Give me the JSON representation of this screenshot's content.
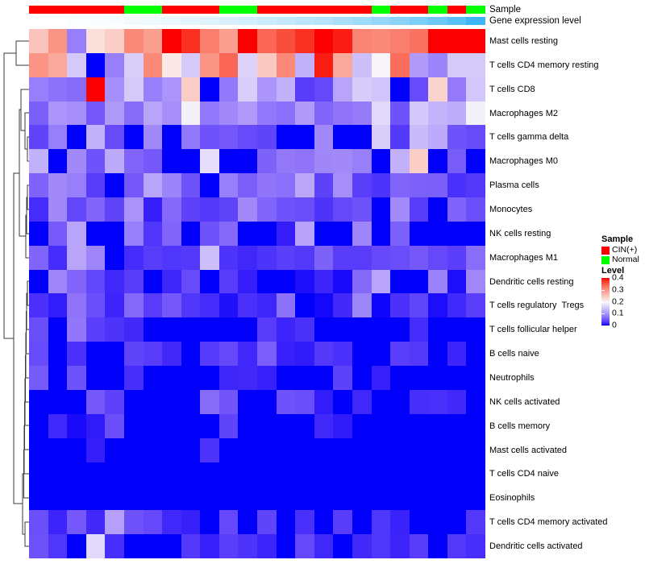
{
  "annotations": {
    "sample_label": "Sample",
    "expr_label": "Gene expression level"
  },
  "legend": {
    "sample": {
      "title": "Sample",
      "items": [
        {
          "label": "CIN(+)",
          "color": "#FF0000"
        },
        {
          "label": "Normal",
          "color": "#00FF00"
        }
      ]
    },
    "level": {
      "title": "Level",
      "ticks": [
        "0.4",
        "0.3",
        "0.2",
        "0.1",
        "0"
      ]
    }
  },
  "colors": {
    "sample": {
      "CIN(+)": "#FF0000",
      "Normal": "#00FF00"
    },
    "expr_low": "#FFFFFF",
    "expr_high": "#3CB6F5",
    "level_low": "#0000FA",
    "level_mid": "#FAF0F0",
    "level_high": "#FA0A05",
    "dendrogram_line": "#3A3A3A"
  },
  "chart_data": {
    "type": "heatmap",
    "title": "",
    "value_range": [
      0,
      0.4
    ],
    "colormap": "blue-white-red",
    "legend_position": "right",
    "n_columns": 24,
    "column_labels_visible": false,
    "rows": [
      "Mast cells resting",
      "T cells CD4 memory resting",
      "T cells CD8",
      "Macrophages M2",
      "T cells gamma delta",
      "Macrophages M0",
      "Plasma cells",
      "Monocytes",
      "NK cells resting",
      "Macrophages M1",
      "Dendritic cells resting",
      "T cells regulatory  Tregs",
      "T cells follicular helper",
      "B cells naive",
      "Neutrophils",
      "NK cells activated",
      "B cells memory",
      "Mast cells activated",
      "T cells CD4 naive",
      "Eosinophils",
      "T cells CD4 memory activated",
      "Dendritic cells activated"
    ],
    "column_annotations": {
      "sample": [
        "CIN(+)",
        "CIN(+)",
        "CIN(+)",
        "CIN(+)",
        "CIN(+)",
        "Normal",
        "Normal",
        "CIN(+)",
        "CIN(+)",
        "CIN(+)",
        "Normal",
        "Normal",
        "CIN(+)",
        "CIN(+)",
        "CIN(+)",
        "CIN(+)",
        "CIN(+)",
        "CIN(+)",
        "Normal",
        "CIN(+)",
        "CIN(+)",
        "Normal",
        "CIN(+)",
        "Normal"
      ],
      "gene_expression_level_relative": [
        0.0,
        0.02,
        0.05,
        0.07,
        0.09,
        0.12,
        0.15,
        0.18,
        0.21,
        0.25,
        0.28,
        0.32,
        0.36,
        0.4,
        0.44,
        0.48,
        0.53,
        0.58,
        0.63,
        0.68,
        0.74,
        0.8,
        0.88,
        1.0
      ]
    },
    "values": [
      [
        0.25,
        0.3,
        0.08,
        0.22,
        0.24,
        0.31,
        0.29,
        0.4,
        0.38,
        0.32,
        0.29,
        0.4,
        0.34,
        0.36,
        0.38,
        0.4,
        0.39,
        0.315,
        0.31,
        0.32,
        0.33,
        0.4,
        0.4,
        0.4
      ],
      [
        0.3,
        0.28,
        0.15,
        0.0,
        0.08,
        0.155,
        0.31,
        0.21,
        0.15,
        0.3,
        0.34,
        0.16,
        0.245,
        0.31,
        0.125,
        0.39,
        0.28,
        0.14,
        0.195,
        0.335,
        0.105,
        0.085,
        0.15,
        0.15
      ],
      [
        0.08,
        0.07,
        0.065,
        0.4,
        0.095,
        0.15,
        0.08,
        0.1,
        0.24,
        0.0,
        0.075,
        0.155,
        0.1,
        0.125,
        0.03,
        0.038,
        0.115,
        0.152,
        0.145,
        0.0,
        0.04,
        0.235,
        0.077,
        0.147
      ],
      [
        0.055,
        0.1,
        0.095,
        0.05,
        0.105,
        0.065,
        0.115,
        0.095,
        0.19,
        0.075,
        0.09,
        0.105,
        0.075,
        0.068,
        0.105,
        0.06,
        0.072,
        0.078,
        0.165,
        0.045,
        0.148,
        0.128,
        0.122,
        0.19
      ],
      [
        0.035,
        0.08,
        0.0,
        0.125,
        0.04,
        0.0,
        0.09,
        0.0,
        0.075,
        0.045,
        0.05,
        0.04,
        0.035,
        0.0,
        0.0,
        0.09,
        0.0,
        0.0,
        0.155,
        0.028,
        0.135,
        0.12,
        0.045,
        0.04
      ],
      [
        0.125,
        0.0,
        0.09,
        0.045,
        0.12,
        0.06,
        0.05,
        0.0,
        0.0,
        0.17,
        0.0,
        0.0,
        0.057,
        0.076,
        0.072,
        0.088,
        0.09,
        0.08,
        0.0,
        0.126,
        0.24,
        0.0,
        0.053,
        0.0
      ],
      [
        0.058,
        0.09,
        0.08,
        0.03,
        0.0,
        0.05,
        0.115,
        0.085,
        0.045,
        0.0,
        0.08,
        0.054,
        0.073,
        0.068,
        0.117,
        0.034,
        0.094,
        0.031,
        0.024,
        0.06,
        0.056,
        0.055,
        0.022,
        0.027
      ],
      [
        0.02,
        0.09,
        0.037,
        0.06,
        0.035,
        0.098,
        0.012,
        0.063,
        0.034,
        0.028,
        0.035,
        0.09,
        0.06,
        0.046,
        0.041,
        0.024,
        0.038,
        0.045,
        0.0,
        0.091,
        0.03,
        0.0,
        0.058,
        0.043
      ],
      [
        0.0,
        0.052,
        0.115,
        0.0,
        0.0,
        0.08,
        0.025,
        0.06,
        0.0,
        0.046,
        0.063,
        0.0,
        0.0,
        0.012,
        0.113,
        0.0,
        0.0,
        0.087,
        0.0,
        0.056,
        0.0,
        0.0,
        0.0,
        0.0
      ],
      [
        0.06,
        0.02,
        0.115,
        0.087,
        0.0,
        0.02,
        0.03,
        0.025,
        0.028,
        0.14,
        0.024,
        0.017,
        0.024,
        0.031,
        0.027,
        0.057,
        0.03,
        0.03,
        0.038,
        0.041,
        0.05,
        0.038,
        0.031,
        0.066
      ],
      [
        0.0,
        0.087,
        0.06,
        0.037,
        0.017,
        0.03,
        0.0,
        0.016,
        0.04,
        0.0,
        0.03,
        0.012,
        0.0,
        0.0,
        0.004,
        0.015,
        0.003,
        0.063,
        0.115,
        0.0,
        0.0,
        0.084,
        0.004,
        0.089
      ],
      [
        0.022,
        0.011,
        0.072,
        0.042,
        0.015,
        0.062,
        0.03,
        0.05,
        0.025,
        0.02,
        0.005,
        0.022,
        0.016,
        0.07,
        0.0,
        0.002,
        0.018,
        0.086,
        0.001,
        0.023,
        0.036,
        0.004,
        0.017,
        0.031
      ],
      [
        0.042,
        0.0,
        0.074,
        0.031,
        0.024,
        0.018,
        0.0,
        0.0,
        0.0,
        0.0,
        0.0,
        0.0,
        0.03,
        0.015,
        0.023,
        0.0,
        0.0,
        0.0,
        0.0,
        0.0,
        0.02,
        0.0,
        0.0,
        0.0
      ],
      [
        0.04,
        0.0,
        0.023,
        0.0,
        0.0,
        0.035,
        0.03,
        0.018,
        0.0,
        0.029,
        0.038,
        0.017,
        0.054,
        0.013,
        0.01,
        0.028,
        0.022,
        0.0,
        0.0,
        0.031,
        0.028,
        0.0,
        0.015,
        0.0
      ],
      [
        0.051,
        0.0,
        0.046,
        0.0,
        0.0,
        0.021,
        0.0,
        0.0,
        0.0,
        0.0,
        0.016,
        0.018,
        0.013,
        0.0,
        0.0,
        0.0,
        0.034,
        0.0,
        0.013,
        0.0,
        0.0,
        0.0,
        0.0,
        0.0
      ],
      [
        0.0,
        0.0,
        0.0,
        0.05,
        0.034,
        0.0,
        0.0,
        0.0,
        0.0,
        0.065,
        0.047,
        0.0,
        0.0,
        0.046,
        0.042,
        0.011,
        0.0,
        0.017,
        0.0,
        0.0,
        0.021,
        0.022,
        0.018,
        0.0
      ],
      [
        0.0,
        0.017,
        0.003,
        0.01,
        0.042,
        0.0,
        0.0,
        0.0,
        0.0,
        0.0,
        0.035,
        0.0,
        0.0,
        0.0,
        0.0,
        0.017,
        0.01,
        0.0,
        0.0,
        0.0,
        0.0,
        0.0,
        0.0,
        0.0
      ],
      [
        0.0,
        0.0,
        0.0,
        0.012,
        0.0,
        0.0,
        0.0,
        0.0,
        0.0,
        0.024,
        0.0,
        0.0,
        0.0,
        0.0,
        0.0,
        0.0,
        0.0,
        0.0,
        0.0,
        0.0,
        0.0,
        0.0,
        0.0,
        0.0
      ],
      [
        0.0,
        0.0,
        0.0,
        0.0,
        0.0,
        0.0,
        0.0,
        0.0,
        0.0,
        0.0,
        0.0,
        0.0,
        0.0,
        0.0,
        0.0,
        0.0,
        0.0,
        0.0,
        0.0,
        0.0,
        0.0,
        0.0,
        0.0,
        0.0
      ],
      [
        0.0,
        0.0,
        0.0,
        0.0,
        0.0,
        0.0,
        0.0,
        0.0,
        0.0,
        0.0,
        0.0,
        0.0,
        0.0,
        0.0,
        0.0,
        0.0,
        0.0,
        0.0,
        0.0,
        0.0,
        0.0,
        0.0,
        0.0,
        0.0
      ],
      [
        0.043,
        0.015,
        0.05,
        0.018,
        0.11,
        0.046,
        0.038,
        0.017,
        0.013,
        0.0,
        0.038,
        0.0,
        0.035,
        0.0,
        0.022,
        0.0,
        0.03,
        0.0,
        0.025,
        0.014,
        0.0,
        0.0,
        0.0,
        0.028
      ],
      [
        0.046,
        0.025,
        0.0,
        0.165,
        0.021,
        0.0,
        0.0,
        0.0,
        0.028,
        0.013,
        0.031,
        0.024,
        0.015,
        0.0,
        0.038,
        0.017,
        0.0,
        0.018,
        0.025,
        0.015,
        0.03,
        0.0,
        0.027,
        0.021
      ]
    ]
  }
}
